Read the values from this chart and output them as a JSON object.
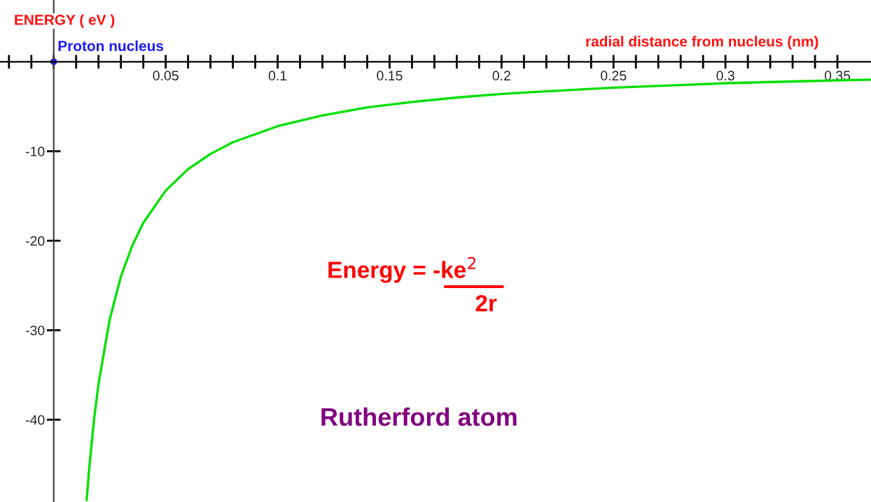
{
  "chart_data": {
    "type": "line",
    "xlabel": "radial distance from nucleus (nm)",
    "ylabel": "ENERGY ( eV )",
    "annotations": [
      {
        "text": "Proton nucleus",
        "x": 0,
        "y": 0
      },
      "Energy = -ke$^{2}$",
      "2r",
      "Rutherford atom"
    ],
    "x": [
      0.0147,
      0.016,
      0.018,
      0.02,
      0.025,
      0.03,
      0.035,
      0.04,
      0.05,
      0.06,
      0.07,
      0.08,
      0.1,
      0.12,
      0.14,
      0.16,
      0.18,
      0.2,
      0.22,
      0.25,
      0.28,
      0.3,
      0.33,
      0.365
    ],
    "series": [
      {
        "color": "#00e000",
        "values": [
          -49,
          -45,
          -40,
          -36,
          -28.8,
          -24,
          -20.6,
          -18,
          -14.4,
          -12,
          -10.3,
          -9,
          -7.2,
          -6,
          -5.1,
          -4.5,
          -4,
          -3.6,
          -3.3,
          -2.9,
          -2.6,
          -2.4,
          -2.2,
          -2.0
        ]
      }
    ],
    "xlim": [
      -0.024,
      0.365
    ],
    "ylim": [
      -49.2,
      6.9
    ],
    "xticks": [
      {
        "value": -0.02,
        "label": null
      },
      {
        "value": -0.01,
        "label": null
      },
      {
        "value": 0,
        "label": null
      },
      {
        "value": 0.01,
        "label": null
      },
      {
        "value": 0.02,
        "label": null
      },
      {
        "value": 0.03,
        "label": null
      },
      {
        "value": 0.04,
        "label": null
      },
      0.05,
      {
        "value": 0.06,
        "label": null
      },
      {
        "value": 0.07,
        "label": null
      },
      {
        "value": 0.08,
        "label": null
      },
      {
        "value": 0.09,
        "label": null
      },
      0.1,
      {
        "value": 0.11,
        "label": null
      },
      {
        "value": 0.12,
        "label": null
      },
      {
        "value": 0.13,
        "label": null
      },
      {
        "value": 0.14,
        "label": null
      },
      0.15,
      {
        "value": 0.16,
        "label": null
      },
      {
        "value": 0.17,
        "label": null
      },
      {
        "value": 0.18,
        "label": null
      },
      {
        "value": 0.19,
        "label": null
      },
      0.2,
      {
        "value": 0.21,
        "label": null
      },
      {
        "value": 0.22,
        "label": null
      },
      {
        "value": 0.23,
        "label": null
      },
      {
        "value": 0.24,
        "label": null
      },
      0.25,
      {
        "value": 0.26,
        "label": null
      },
      {
        "value": 0.27,
        "label": null
      },
      {
        "value": 0.28,
        "label": null
      },
      {
        "value": 0.29,
        "label": null
      },
      0.3,
      {
        "value": 0.31,
        "label": null
      },
      {
        "value": 0.32,
        "label": null
      },
      {
        "value": 0.33,
        "label": null
      },
      {
        "value": 0.34,
        "label": null
      },
      0.35
    ],
    "yticks": [
      -10,
      -20,
      -30,
      -40
    ],
    "grid": false,
    "legend": false,
    "marker": "none",
    "line_style": "solid"
  }
}
